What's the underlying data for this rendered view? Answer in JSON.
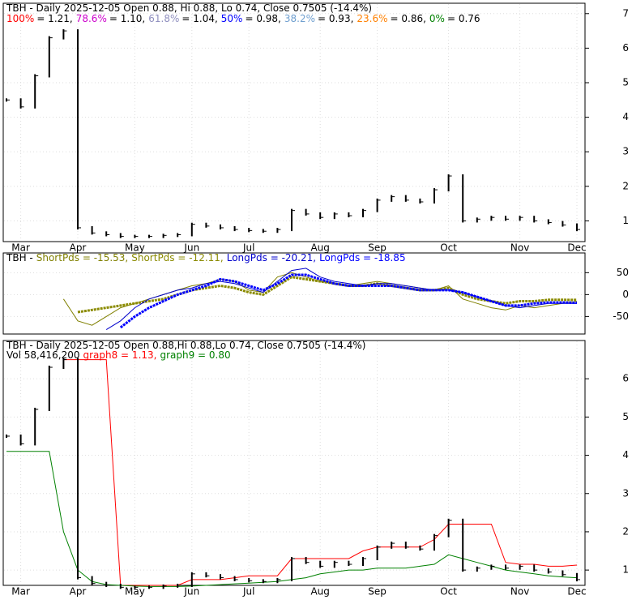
{
  "chart_data": [
    {
      "type": "price",
      "title": "TBH - Daily 2025-12-05 Open 0.88, Hi 0.88, Lo 0.74, Close 0.7505 (-14.4%)",
      "fib_levels": [
        {
          "label": "100%",
          "text": "= 1.21,",
          "color": "#ff0000"
        },
        {
          "label": "78.6%",
          "text": "= 1.10,",
          "color": "#cc00cc"
        },
        {
          "label": "61.8%",
          "text": "= 1.04,",
          "color": "#8f8fbf"
        },
        {
          "label": "50%",
          "text": "= 0.98,",
          "color": "#0000ff"
        },
        {
          "label": "38.2%",
          "text": "= 0.93,",
          "color": "#6f9fcf"
        },
        {
          "label": "23.6%",
          "text": "= 0.86,",
          "color": "#ff8000"
        },
        {
          "label": "0%",
          "text": "= 0.76",
          "color": "#008000"
        }
      ],
      "values": [
        4.5,
        4.3,
        5.2,
        6.3,
        6.5,
        0.8,
        0.65,
        0.6,
        0.55,
        0.55,
        0.55,
        0.58,
        0.6,
        0.9,
        0.85,
        0.8,
        0.75,
        0.72,
        0.7,
        0.75,
        1.3,
        1.2,
        1.1,
        1.2,
        1.15,
        1.3,
        1.6,
        1.7,
        1.6,
        1.55,
        1.9,
        2.3,
        1.0,
        1.05,
        1.1,
        1.05,
        1.1,
        1.0,
        0.95,
        0.88,
        0.75
      ],
      "color": "#000000",
      "ylim": [
        0.4,
        7.3
      ],
      "yticks": [
        1,
        2,
        3,
        4,
        5,
        6,
        7
      ],
      "xticks": [
        {
          "value": 1,
          "label": "Mar"
        },
        {
          "value": 5,
          "label": "Apr"
        },
        {
          "value": 9,
          "label": "May"
        },
        {
          "value": 13,
          "label": "Jun"
        },
        {
          "value": 17,
          "label": "Jul"
        },
        {
          "value": 22,
          "label": "Aug"
        },
        {
          "value": 26,
          "label": "Sep"
        },
        {
          "value": 31,
          "label": "Oct"
        },
        {
          "value": 36,
          "label": "Nov"
        },
        {
          "value": 40,
          "label": "Dec"
        }
      ],
      "grid": true
    },
    {
      "type": "line",
      "legend_prefix": "TBH -",
      "series": [
        {
          "name": "ShortPds = -15.53,",
          "color": "#808000",
          "width": 1,
          "values": [
            null,
            null,
            null,
            null,
            -10,
            -60,
            -70,
            -50,
            -30,
            -20,
            -10,
            0,
            10,
            20,
            25,
            35,
            30,
            10,
            5,
            40,
            50,
            40,
            30,
            25,
            20,
            25,
            30,
            25,
            20,
            15,
            10,
            20,
            -10,
            -20,
            -30,
            -35,
            -25,
            -30,
            -25,
            -20,
            -15.53
          ]
        },
        {
          "name": "ShortPds = -12.11,",
          "color": "#8b8b00",
          "width": 3,
          "values": [
            null,
            null,
            null,
            null,
            null,
            -40,
            -35,
            -30,
            -25,
            -20,
            -15,
            -10,
            0,
            10,
            15,
            20,
            15,
            5,
            0,
            20,
            40,
            35,
            30,
            25,
            20,
            20,
            25,
            20,
            15,
            10,
            10,
            15,
            0,
            -10,
            -15,
            -20,
            -15,
            -15,
            -12,
            -12,
            -12.11
          ]
        },
        {
          "name": "LongPds = -20.21,",
          "color": "#0000cc",
          "width": 1,
          "values": [
            null,
            null,
            null,
            null,
            null,
            null,
            null,
            -80,
            -60,
            -30,
            -10,
            0,
            10,
            15,
            25,
            30,
            25,
            15,
            5,
            30,
            55,
            60,
            40,
            30,
            25,
            20,
            25,
            25,
            20,
            15,
            10,
            10,
            5,
            -5,
            -15,
            -25,
            -30,
            -25,
            -20,
            -20,
            -20.21
          ]
        },
        {
          "name": "LongPds = -18.85",
          "color": "#0000ff",
          "width": 3,
          "values": [
            null,
            null,
            null,
            null,
            null,
            null,
            null,
            null,
            -75,
            -50,
            -30,
            -15,
            0,
            10,
            20,
            35,
            30,
            20,
            10,
            25,
            45,
            45,
            35,
            25,
            20,
            20,
            20,
            20,
            15,
            10,
            10,
            10,
            5,
            -5,
            -15,
            -25,
            -25,
            -20,
            -18,
            -18,
            -18.85
          ]
        }
      ],
      "ylim": [
        -90,
        95
      ],
      "yticks": [
        -50,
        0,
        50
      ],
      "grid": true
    },
    {
      "type": "price",
      "title": "TBH - Daily 2025-12-05 Open 0.88,Hi 0.88,Lo 0.74, Close 0.7505 (-14.4%)",
      "subtitle": "Vol 58,416,200",
      "values": [
        4.5,
        4.3,
        5.2,
        6.3,
        6.5,
        0.8,
        0.65,
        0.6,
        0.55,
        0.55,
        0.55,
        0.58,
        0.6,
        0.9,
        0.85,
        0.8,
        0.75,
        0.72,
        0.7,
        0.75,
        1.3,
        1.2,
        1.1,
        1.2,
        1.15,
        1.3,
        1.6,
        1.7,
        1.6,
        1.55,
        1.9,
        2.3,
        1.0,
        1.05,
        1.1,
        1.05,
        1.1,
        1.0,
        0.95,
        0.88,
        0.75
      ],
      "color": "#000000",
      "series": [
        {
          "name": "graph8 = 1.13,",
          "color": "#ff0000",
          "width": 1,
          "values": [
            null,
            null,
            null,
            null,
            6.5,
            6.5,
            6.5,
            6.5,
            0.6,
            0.6,
            0.6,
            0.6,
            0.6,
            0.75,
            0.75,
            0.75,
            0.8,
            0.85,
            0.85,
            0.85,
            1.3,
            1.3,
            1.3,
            1.3,
            1.3,
            1.5,
            1.6,
            1.6,
            1.6,
            1.6,
            1.8,
            2.2,
            2.2,
            2.2,
            2.2,
            1.2,
            1.15,
            1.15,
            1.1,
            1.1,
            1.13
          ]
        },
        {
          "name": "graph9 = 0.80",
          "color": "#008000",
          "width": 1,
          "values": [
            4.1,
            4.1,
            4.1,
            4.1,
            2.0,
            1.0,
            0.7,
            0.62,
            0.6,
            0.58,
            0.57,
            0.57,
            0.57,
            0.58,
            0.6,
            0.62,
            0.64,
            0.66,
            0.68,
            0.7,
            0.75,
            0.8,
            0.9,
            0.95,
            1.0,
            1.0,
            1.05,
            1.05,
            1.05,
            1.1,
            1.15,
            1.4,
            1.3,
            1.2,
            1.1,
            1.0,
            0.95,
            0.9,
            0.85,
            0.82,
            0.8
          ]
        }
      ],
      "ylim": [
        0.6,
        7.0
      ],
      "yticks": [
        1,
        2,
        3,
        4,
        5,
        6
      ],
      "xticks": [
        {
          "value": 1,
          "label": "Mar"
        },
        {
          "value": 5,
          "label": "Apr"
        },
        {
          "value": 9,
          "label": "May"
        },
        {
          "value": 13,
          "label": "Jun"
        },
        {
          "value": 17,
          "label": "Jul"
        },
        {
          "value": 22,
          "label": "Aug"
        },
        {
          "value": 26,
          "label": "Sep"
        },
        {
          "value": 31,
          "label": "Oct"
        },
        {
          "value": 36,
          "label": "Nov"
        },
        {
          "value": 40,
          "label": "Dec"
        }
      ],
      "grid": true
    }
  ]
}
